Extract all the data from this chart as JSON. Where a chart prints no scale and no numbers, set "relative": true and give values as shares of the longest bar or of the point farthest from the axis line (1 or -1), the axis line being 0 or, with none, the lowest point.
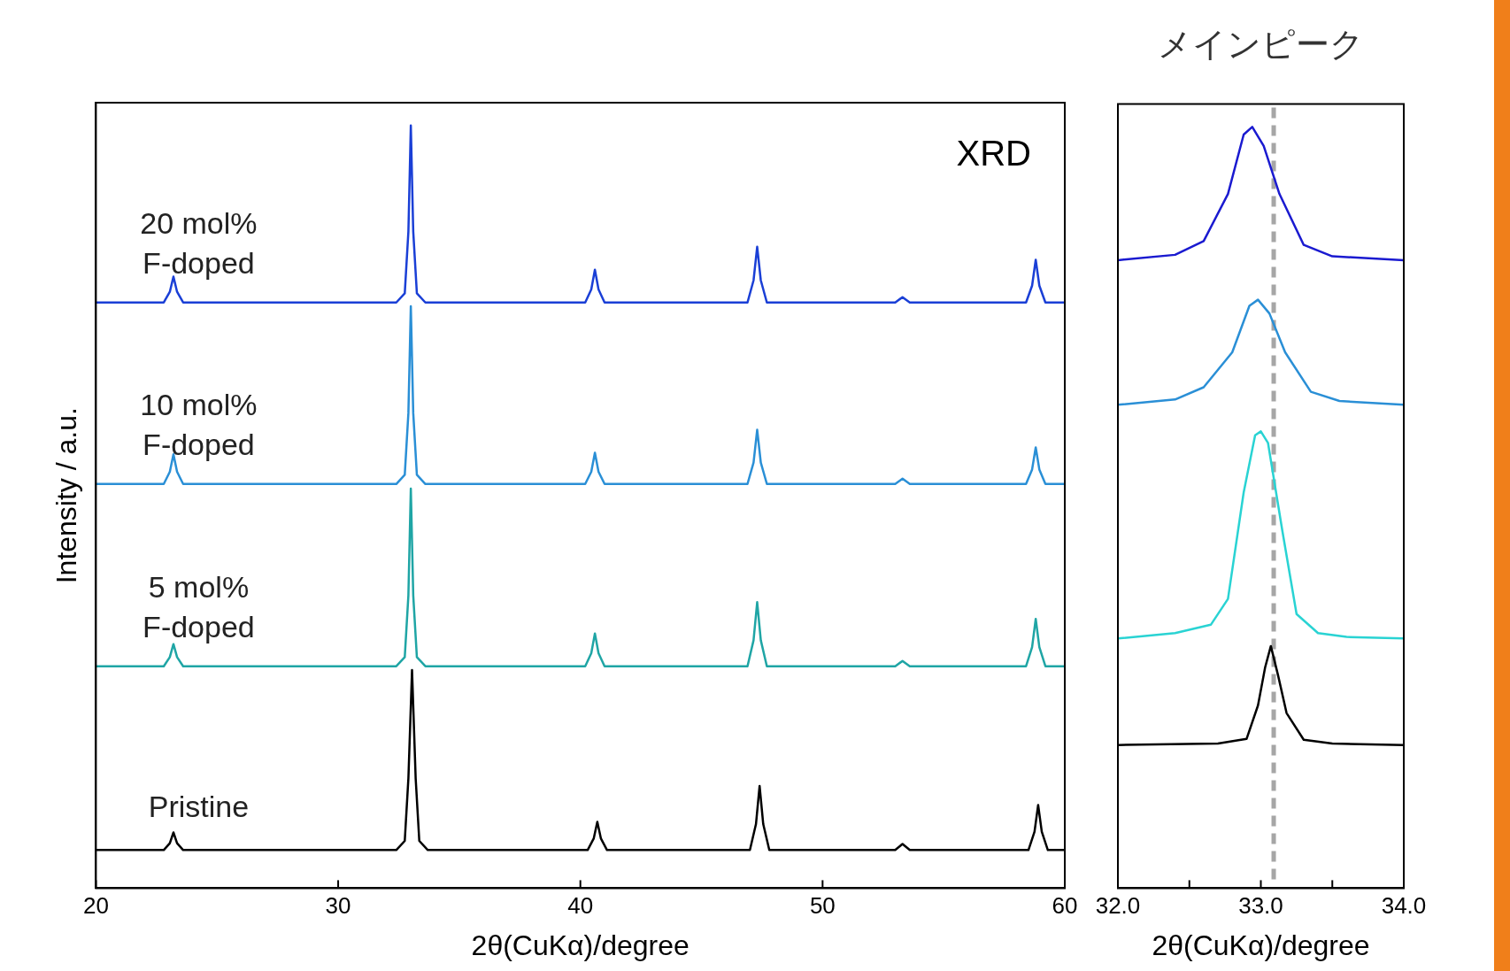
{
  "chart_data": [
    {
      "type": "line",
      "ylabel": "Intensity / a.u.",
      "xlabel": "2θ(CuKα)/degree",
      "annotations": [
        "XRD"
      ],
      "relative": true,
      "marker": "none",
      "xlim": [
        20,
        60
      ],
      "xticks": [
        20,
        30,
        40,
        50,
        60
      ],
      "series": [
        {
          "name": "20 mol% F-doped",
          "color": "#1a3fd6",
          "x": [
            20,
            22.8,
            23.05,
            23.2,
            23.35,
            23.6,
            32.4,
            32.75,
            32.9,
            33.0,
            33.1,
            33.25,
            33.6,
            40.2,
            40.45,
            40.6,
            40.75,
            41.0,
            46.9,
            47.15,
            47.3,
            47.45,
            47.7,
            53.0,
            53.3,
            53.6,
            58.4,
            58.65,
            58.8,
            58.95,
            59.2,
            60
          ],
          "values": [
            0.768,
            0.768,
            0.782,
            0.802,
            0.782,
            0.768,
            0.768,
            0.78,
            0.861,
            1.0,
            0.861,
            0.78,
            0.768,
            0.768,
            0.785,
            0.811,
            0.785,
            0.768,
            0.768,
            0.797,
            0.841,
            0.797,
            0.768,
            0.768,
            0.775,
            0.768,
            0.768,
            0.79,
            0.824,
            0.79,
            0.768,
            0.768
          ]
        },
        {
          "name": "10 mol% F-doped",
          "color": "#2a8fd6",
          "x": [
            20,
            22.8,
            23.05,
            23.2,
            23.35,
            23.6,
            32.4,
            32.75,
            32.9,
            33.0,
            33.1,
            33.25,
            33.6,
            40.2,
            40.45,
            40.6,
            40.75,
            41.0,
            46.9,
            47.15,
            47.3,
            47.45,
            47.7,
            53.0,
            53.3,
            53.6,
            58.4,
            58.65,
            58.8,
            58.95,
            59.2,
            60
          ],
          "values": [
            0.53,
            0.53,
            0.546,
            0.569,
            0.546,
            0.53,
            0.53,
            0.542,
            0.623,
            0.763,
            0.623,
            0.542,
            0.53,
            0.53,
            0.546,
            0.571,
            0.546,
            0.53,
            0.53,
            0.558,
            0.601,
            0.558,
            0.53,
            0.53,
            0.537,
            0.53,
            0.53,
            0.549,
            0.578,
            0.549,
            0.53,
            0.53
          ]
        },
        {
          "name": "5 mol% F-doped",
          "color": "#1fa5a5",
          "x": [
            20,
            22.8,
            23.05,
            23.2,
            23.35,
            23.6,
            32.4,
            32.75,
            32.9,
            33.0,
            33.1,
            33.25,
            33.6,
            40.2,
            40.45,
            40.6,
            40.75,
            41.0,
            46.9,
            47.15,
            47.3,
            47.45,
            47.7,
            53.0,
            53.3,
            53.6,
            58.4,
            58.65,
            58.8,
            58.95,
            59.2,
            60
          ],
          "values": [
            0.291,
            0.291,
            0.303,
            0.32,
            0.303,
            0.291,
            0.291,
            0.303,
            0.384,
            0.524,
            0.384,
            0.303,
            0.291,
            0.291,
            0.308,
            0.334,
            0.308,
            0.291,
            0.291,
            0.325,
            0.375,
            0.325,
            0.291,
            0.291,
            0.298,
            0.291,
            0.291,
            0.316,
            0.353,
            0.316,
            0.291,
            0.291
          ]
        },
        {
          "name": "Pristine",
          "color": "#000000",
          "x": [
            20,
            22.8,
            23.05,
            23.2,
            23.35,
            23.6,
            32.4,
            32.75,
            32.9,
            33.05,
            33.2,
            33.35,
            33.7,
            40.3,
            40.55,
            40.7,
            40.85,
            41.1,
            47.0,
            47.25,
            47.4,
            47.55,
            47.8,
            53.0,
            53.3,
            53.6,
            58.5,
            58.75,
            58.9,
            59.05,
            59.3,
            60
          ],
          "values": [
            0.05,
            0.05,
            0.059,
            0.073,
            0.059,
            0.05,
            0.05,
            0.062,
            0.144,
            0.286,
            0.144,
            0.062,
            0.05,
            0.05,
            0.065,
            0.087,
            0.065,
            0.05,
            0.05,
            0.084,
            0.134,
            0.084,
            0.05,
            0.05,
            0.058,
            0.05,
            0.05,
            0.074,
            0.109,
            0.074,
            0.05,
            0.05
          ]
        }
      ]
    },
    {
      "type": "line",
      "title": "メインピーク",
      "xlabel": "2θ(CuKα)/degree",
      "relative": true,
      "marker": "none",
      "xlim": [
        32.0,
        34.0
      ],
      "xticks": [
        {
          "value": 32.0,
          "label": "32.0"
        },
        {
          "value": 32.5,
          "label": null
        },
        {
          "value": 33.0,
          "label": "33.0"
        },
        {
          "value": 33.5,
          "label": null
        },
        {
          "value": 34.0,
          "label": "34.0"
        }
      ],
      "ref_lines": [
        {
          "axis": "x",
          "value": 33.09,
          "color": "#a6a6a6",
          "line_style": "dashed"
        }
      ],
      "series": [
        {
          "color": "#1a1ad0",
          "x": [
            32.0,
            32.4,
            32.6,
            32.77,
            32.88,
            32.94,
            33.02,
            33.13,
            33.3,
            33.5,
            34.0
          ],
          "values": [
            0.825,
            0.832,
            0.85,
            0.912,
            0.99,
            1.0,
            0.975,
            0.912,
            0.845,
            0.83,
            0.825
          ]
        },
        {
          "color": "#2a8fd6",
          "x": [
            32.0,
            32.4,
            32.6,
            32.8,
            32.92,
            32.98,
            33.06,
            33.17,
            33.35,
            33.55,
            34.0
          ],
          "values": [
            0.635,
            0.642,
            0.658,
            0.704,
            0.765,
            0.773,
            0.755,
            0.704,
            0.652,
            0.64,
            0.635
          ]
        },
        {
          "color": "#29d3d3",
          "x": [
            32.0,
            32.4,
            32.65,
            32.77,
            32.88,
            32.96,
            33.0,
            33.05,
            33.15,
            33.25,
            33.4,
            33.6,
            34.0
          ],
          "values": [
            0.328,
            0.335,
            0.346,
            0.38,
            0.52,
            0.595,
            0.6,
            0.585,
            0.47,
            0.36,
            0.335,
            0.33,
            0.328
          ]
        },
        {
          "color": "#000000",
          "x": [
            32.0,
            32.7,
            32.9,
            32.98,
            33.03,
            33.07,
            33.12,
            33.18,
            33.3,
            33.5,
            34.0
          ],
          "values": [
            0.188,
            0.19,
            0.196,
            0.24,
            0.29,
            0.318,
            0.28,
            0.23,
            0.195,
            0.19,
            0.188
          ]
        }
      ]
    }
  ]
}
